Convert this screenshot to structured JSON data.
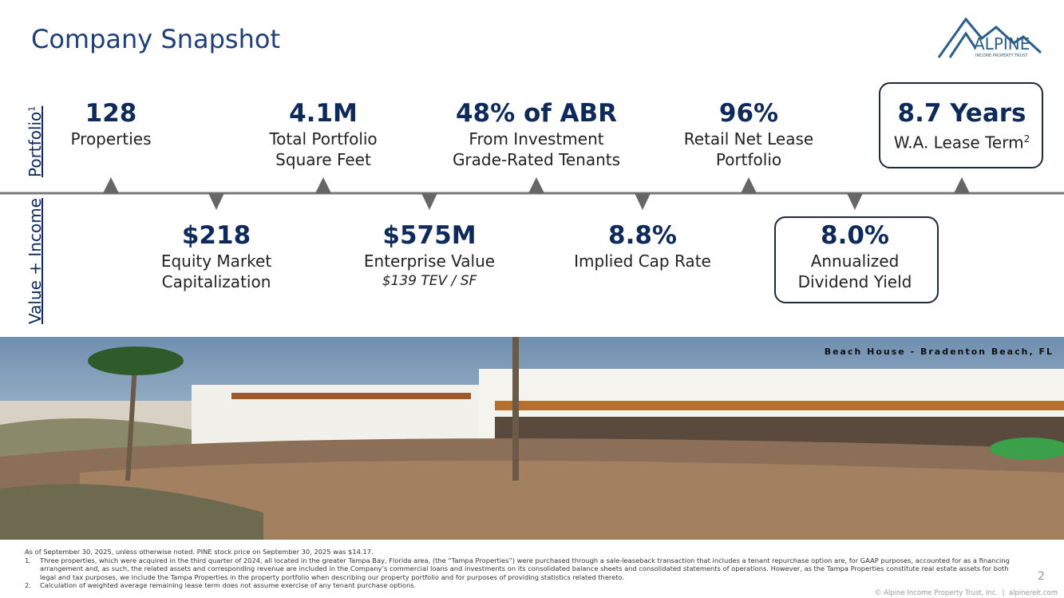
{
  "header": {
    "title": "Company Snapshot",
    "logo": {
      "name": "ALPINE",
      "tagline": "INCOME PROPERTY TRUST"
    }
  },
  "rows": {
    "portfolio": {
      "label": "Portfolio",
      "note": "1"
    },
    "value_income": {
      "label": "Value + Income"
    }
  },
  "top_metrics": [
    {
      "value": "128",
      "lines": [
        "Properties"
      ]
    },
    {
      "value": "4.1M",
      "lines": [
        "Total Portfolio",
        "Square Feet"
      ]
    },
    {
      "value": "48% of ABR",
      "lines": [
        "From Investment",
        "Grade-Rated Tenants"
      ]
    },
    {
      "value": "96%",
      "lines": [
        "Retail Net Lease",
        "Portfolio"
      ]
    },
    {
      "value": "8.7 Years",
      "lines": [
        "W.A. Lease Term"
      ],
      "note": "2"
    }
  ],
  "bottom_metrics": [
    {
      "value": "$218",
      "lines": [
        "Equity Market",
        "Capitalization"
      ]
    },
    {
      "value": "$575M",
      "lines": [
        "Enterprise Value"
      ],
      "detail": "$139 TEV / SF"
    },
    {
      "value": "8.8%",
      "lines": [
        "Implied Cap Rate"
      ]
    },
    {
      "value": "8.0%",
      "lines": [
        "Annualized",
        "Dividend Yield"
      ]
    }
  ],
  "photo": {
    "caption": "Beach House - Bradenton Beach, FL"
  },
  "footnotes": {
    "intro": "As of September 30, 2025, unless otherwise noted. PINE stock price on September 30, 2025 was $14.17.",
    "notes": [
      {
        "marker": "1.",
        "text": "Three properties, which were acquired in the third quarter of 2024, all located in the greater Tampa Bay, Florida area, (the “Tampa Properties”) were purchased through a sale-leaseback transaction that includes a tenant repurchase option are, for GAAP purposes, accounted for as a financing arrangement and, as such, the related assets and corresponding revenue are included in the Company’s commercial loans and investments on its consolidated balance sheets and consolidated statements of operations. However, as the Tampa Properties constitute real estate assets for both legal and tax purposes, we include the Tampa Properties in the property portfolio when describing our property portfolio and for purposes of providing statistics related thereto."
      },
      {
        "marker": "2.",
        "text": "Calculation of weighted average remaining lease term does not assume exercise of any tenant purchase options."
      }
    ]
  },
  "footer": {
    "page": "2",
    "copyright": "© Alpine Income Property Trust, Inc.  |  alpinereit.com"
  }
}
